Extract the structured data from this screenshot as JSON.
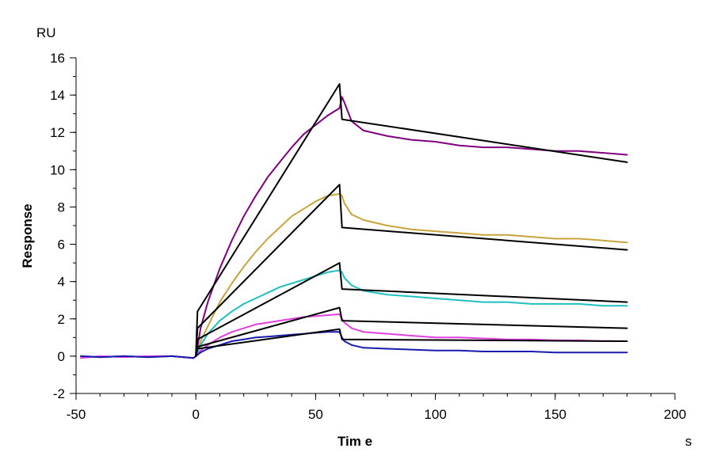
{
  "chart_data": {
    "type": "line",
    "xlabel": "Tim e",
    "ylabel": "Response",
    "x_unit": "s",
    "y_unit": "RU",
    "xlim": [
      -50,
      200
    ],
    "ylim": [
      -2,
      16
    ],
    "x_ticks": [
      -50,
      0,
      50,
      100,
      150,
      200
    ],
    "y_ticks": [
      -2,
      0,
      2,
      4,
      6,
      8,
      10,
      12,
      14,
      16
    ],
    "x_minor_step": 10,
    "y_minor_step": 1,
    "grid": false,
    "colors": {
      "purple": "#800080",
      "gold": "#C9A43C",
      "cyan": "#20C0C0",
      "magenta": "#E040E0",
      "blue": "#1A1AB0",
      "fit": "#000000"
    },
    "series": [
      {
        "color": "#800080",
        "x": [
          -48,
          -40,
          -30,
          -20,
          -10,
          -1,
          0,
          2,
          5,
          10,
          15,
          20,
          25,
          30,
          35,
          40,
          45,
          50,
          55,
          60,
          61,
          62,
          65,
          70,
          80,
          90,
          100,
          110,
          120,
          130,
          140,
          150,
          160,
          170,
          180
        ],
        "y": [
          0.0,
          -0.05,
          0.0,
          -0.05,
          0.0,
          -0.1,
          0.0,
          1.5,
          2.9,
          4.7,
          6.2,
          7.5,
          8.6,
          9.6,
          10.4,
          11.2,
          11.9,
          12.4,
          12.9,
          13.3,
          13.9,
          13.6,
          12.6,
          12.1,
          11.8,
          11.6,
          11.5,
          11.3,
          11.2,
          11.2,
          11.1,
          11.0,
          11.0,
          10.9,
          10.8
        ]
      },
      {
        "color": "#C9A43C",
        "x": [
          -48,
          -40,
          -30,
          -20,
          -10,
          -1,
          0,
          2,
          5,
          10,
          15,
          20,
          25,
          30,
          35,
          40,
          45,
          50,
          55,
          60,
          61,
          62,
          65,
          70,
          80,
          90,
          100,
          110,
          120,
          130,
          140,
          150,
          160,
          170,
          180
        ],
        "y": [
          0.0,
          -0.05,
          0.0,
          -0.05,
          0.0,
          -0.1,
          0.0,
          0.8,
          1.6,
          2.9,
          3.9,
          4.8,
          5.6,
          6.3,
          6.9,
          7.5,
          7.9,
          8.3,
          8.6,
          8.7,
          8.6,
          8.2,
          7.6,
          7.3,
          7.0,
          6.8,
          6.7,
          6.6,
          6.5,
          6.5,
          6.4,
          6.3,
          6.3,
          6.2,
          6.1
        ]
      },
      {
        "color": "#20C0C0",
        "x": [
          -48,
          -40,
          -30,
          -20,
          -10,
          -1,
          0,
          2,
          5,
          10,
          15,
          20,
          25,
          30,
          35,
          40,
          45,
          50,
          55,
          60,
          61,
          62,
          65,
          70,
          80,
          90,
          100,
          110,
          120,
          130,
          140,
          150,
          160,
          170,
          180
        ],
        "y": [
          0.0,
          -0.05,
          0.0,
          -0.05,
          0.0,
          -0.1,
          0.0,
          0.6,
          1.2,
          1.9,
          2.4,
          2.8,
          3.1,
          3.4,
          3.7,
          3.9,
          4.1,
          4.3,
          4.5,
          4.6,
          4.5,
          4.2,
          3.8,
          3.5,
          3.3,
          3.2,
          3.1,
          3.0,
          2.9,
          2.9,
          2.8,
          2.8,
          2.8,
          2.7,
          2.7
        ]
      },
      {
        "color": "#E040E0",
        "x": [
          -48,
          -40,
          -30,
          -20,
          -10,
          -1,
          0,
          2,
          5,
          10,
          15,
          20,
          25,
          30,
          35,
          40,
          45,
          50,
          55,
          60,
          61,
          62,
          65,
          70,
          80,
          90,
          100,
          110,
          120,
          130,
          140,
          150,
          160,
          170,
          180
        ],
        "y": [
          -0.1,
          0.0,
          -0.05,
          0.0,
          0.0,
          -0.1,
          0.0,
          0.3,
          0.6,
          1.0,
          1.3,
          1.5,
          1.7,
          1.8,
          1.9,
          2.0,
          2.1,
          2.15,
          2.2,
          2.25,
          2.0,
          1.8,
          1.5,
          1.3,
          1.2,
          1.1,
          1.0,
          1.0,
          0.95,
          0.9,
          0.9,
          0.85,
          0.85,
          0.8,
          0.8
        ]
      },
      {
        "color": "#1A1AB0",
        "x": [
          -48,
          -40,
          -30,
          -20,
          -10,
          -1,
          0,
          2,
          5,
          10,
          15,
          20,
          25,
          30,
          35,
          40,
          45,
          50,
          55,
          60,
          61,
          62,
          65,
          70,
          80,
          90,
          100,
          110,
          120,
          130,
          140,
          150,
          160,
          170,
          180
        ],
        "y": [
          0.0,
          -0.05,
          0.0,
          -0.05,
          0.0,
          -0.1,
          0.0,
          0.2,
          0.4,
          0.6,
          0.8,
          0.9,
          1.0,
          1.05,
          1.1,
          1.15,
          1.2,
          1.25,
          1.3,
          1.3,
          1.0,
          0.8,
          0.6,
          0.45,
          0.4,
          0.35,
          0.3,
          0.3,
          0.25,
          0.25,
          0.25,
          0.2,
          0.2,
          0.2,
          0.2
        ]
      }
    ],
    "fit_series": [
      {
        "color": "#000000",
        "x": [
          0,
          0.7,
          60,
          61,
          180
        ],
        "y": [
          0.0,
          2.4,
          14.6,
          12.7,
          10.4
        ]
      },
      {
        "color": "#000000",
        "x": [
          0,
          0.7,
          60,
          61,
          180
        ],
        "y": [
          0.0,
          1.5,
          9.2,
          6.9,
          5.7
        ]
      },
      {
        "color": "#000000",
        "x": [
          0,
          0.7,
          60,
          61,
          180
        ],
        "y": [
          0.0,
          0.9,
          5.0,
          3.6,
          2.9
        ]
      },
      {
        "color": "#000000",
        "x": [
          0,
          0.7,
          60,
          61,
          180
        ],
        "y": [
          0.0,
          0.5,
          2.6,
          1.9,
          1.5
        ]
      },
      {
        "color": "#000000",
        "x": [
          0,
          0.7,
          60,
          61,
          180
        ],
        "y": [
          0.0,
          0.4,
          1.45,
          0.9,
          0.8
        ]
      }
    ]
  }
}
